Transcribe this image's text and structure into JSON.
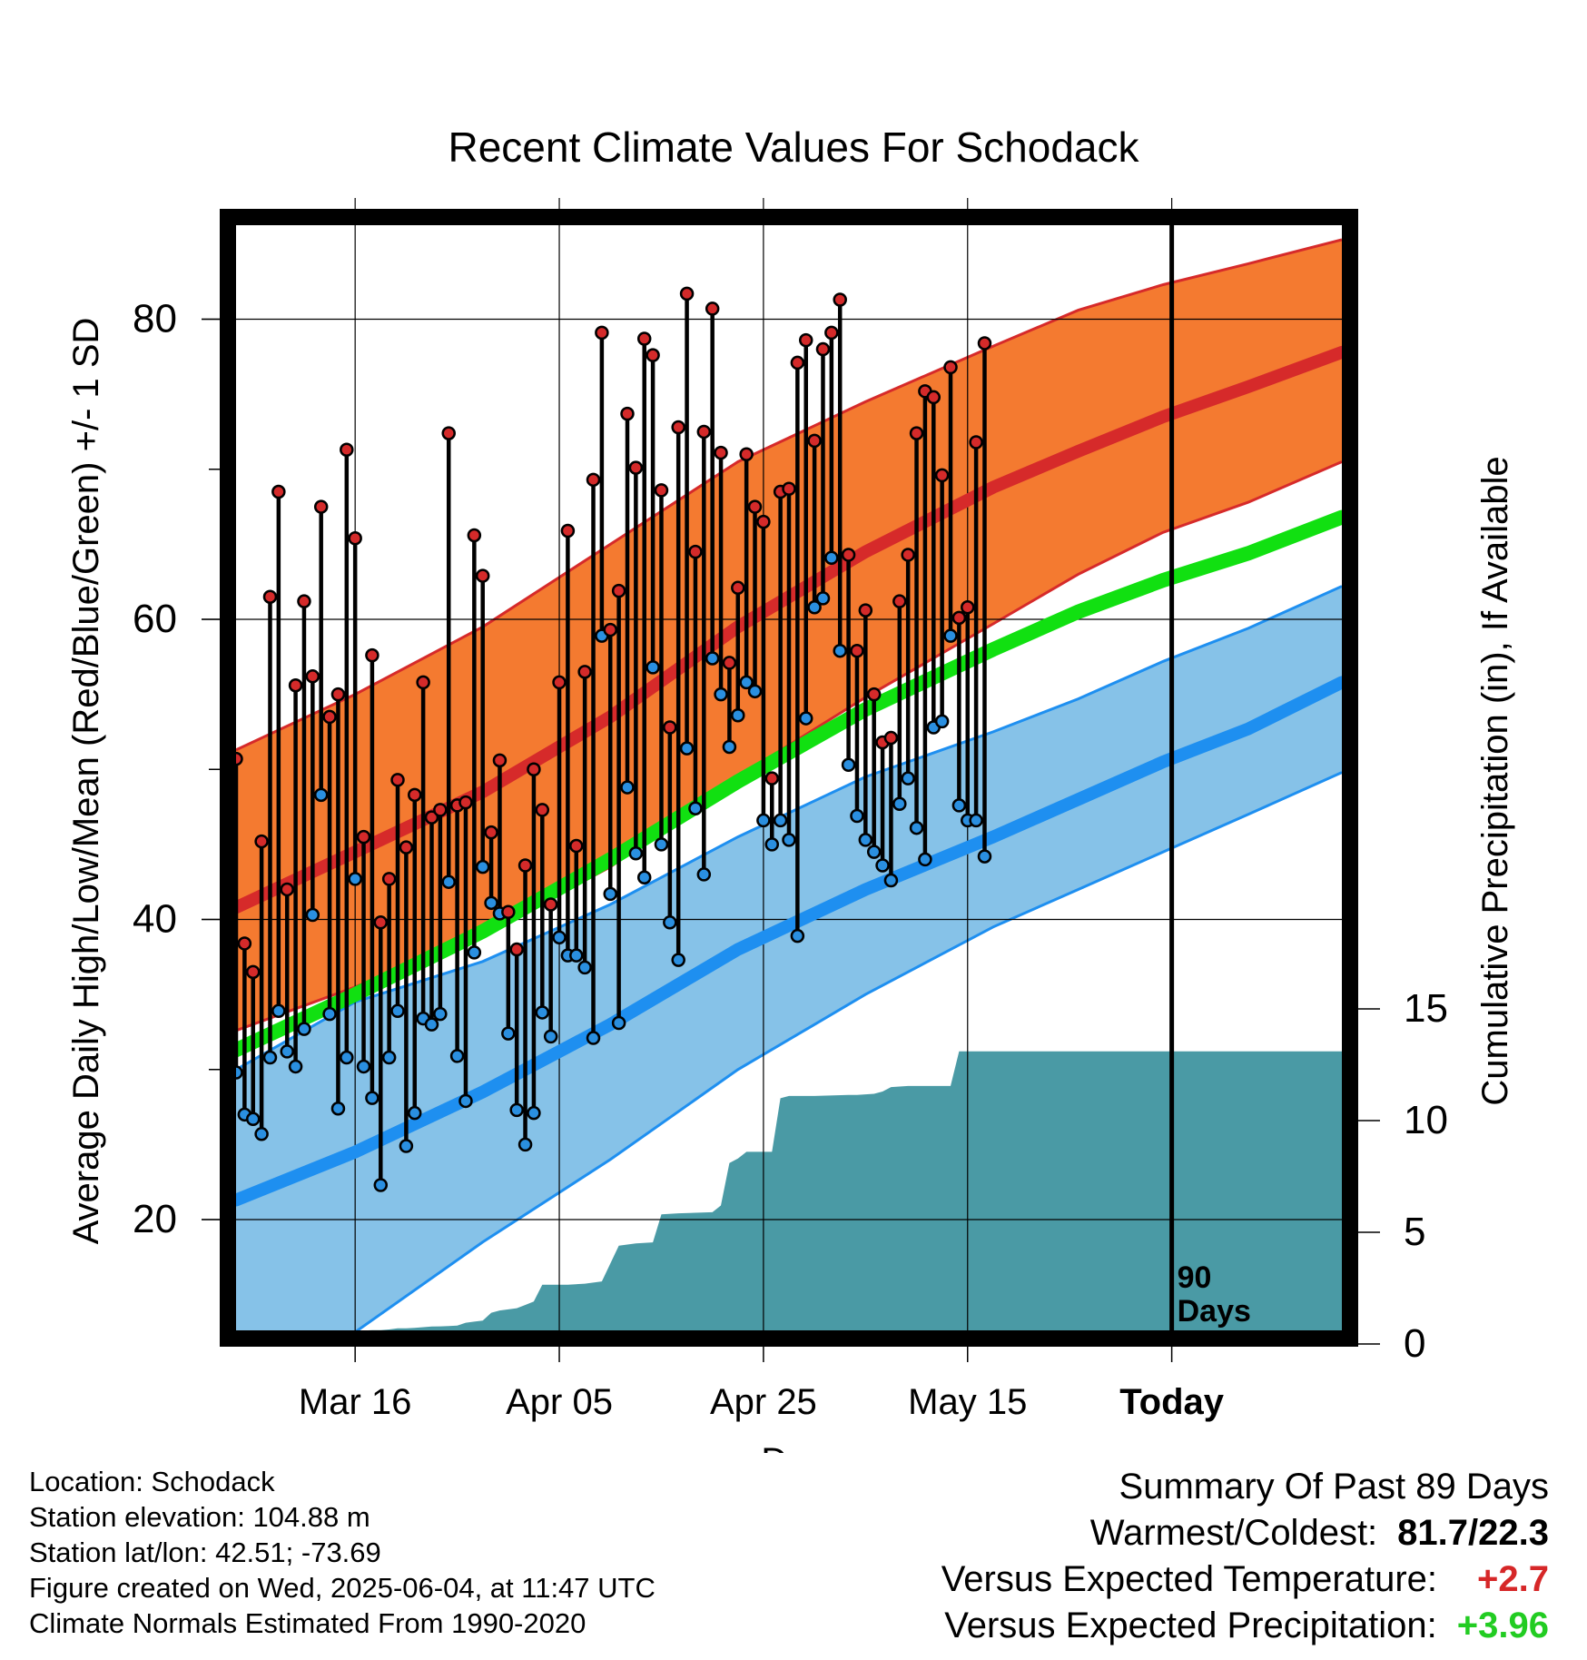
{
  "chart_data": {
    "type": "line",
    "title": "Recent Climate Values For Schodack",
    "xlabel": "Day",
    "ylabel": "Average Daily High/Low/Mean (Red/Blue/Green) +/- 1 SD",
    "y2label": "Cumulative Precipitation (in), If Available",
    "x_tick_labels": [
      "Mar 16",
      "Apr 05",
      "Apr 25",
      "May 15",
      "Today"
    ],
    "y_ticks": [
      20,
      40,
      60,
      80
    ],
    "y2_ticks": [
      0,
      5,
      10,
      15
    ],
    "today_marker_label": [
      "90",
      "Days"
    ],
    "colors": {
      "high_band": "#f47a30",
      "high_line": "#d62a2a",
      "mean_line": "#11e011",
      "low_band": "#86c2e8",
      "low_line": "#1e8ff0",
      "precip": "#4a9aa5"
    },
    "normals": {
      "high_mean": [
        [
          1,
          40.8
        ],
        [
          15,
          44.5
        ],
        [
          30,
          48.5
        ],
        [
          45,
          53.5
        ],
        [
          60,
          59.5
        ],
        [
          75,
          64.5
        ],
        [
          90,
          68.8
        ],
        [
          100,
          71.2
        ],
        [
          110,
          73.5
        ],
        [
          120,
          75.5
        ],
        [
          131,
          77.8
        ]
      ],
      "high_sd_upper": [
        [
          1,
          51.3
        ],
        [
          15,
          55
        ],
        [
          30,
          59.5
        ],
        [
          45,
          65
        ],
        [
          60,
          70.5
        ],
        [
          75,
          74.5
        ],
        [
          90,
          78.2
        ],
        [
          100,
          80.6
        ],
        [
          110,
          82.3
        ],
        [
          120,
          83.7
        ],
        [
          131,
          85.3
        ]
      ],
      "high_sd_lower": [
        [
          1,
          32.6
        ],
        [
          15,
          35.5
        ],
        [
          30,
          39
        ],
        [
          45,
          43.5
        ],
        [
          60,
          49.5
        ],
        [
          75,
          54.8
        ],
        [
          90,
          59.7
        ],
        [
          100,
          63
        ],
        [
          110,
          65.8
        ],
        [
          120,
          67.8
        ],
        [
          131,
          70.5
        ]
      ],
      "mean": [
        [
          1,
          31.3
        ],
        [
          15,
          35
        ],
        [
          30,
          39.2
        ],
        [
          45,
          44
        ],
        [
          60,
          49.2
        ],
        [
          75,
          54
        ],
        [
          90,
          58
        ],
        [
          100,
          60.5
        ],
        [
          110,
          62.6
        ],
        [
          120,
          64.4
        ],
        [
          131,
          66.8
        ]
      ],
      "low_mean": [
        [
          1,
          21.3
        ],
        [
          15,
          24.5
        ],
        [
          30,
          28.5
        ],
        [
          45,
          33
        ],
        [
          60,
          38
        ],
        [
          75,
          42
        ],
        [
          90,
          45.5
        ],
        [
          100,
          48
        ],
        [
          110,
          50.5
        ],
        [
          120,
          52.7
        ],
        [
          131,
          55.8
        ]
      ],
      "low_sd_upper": [
        [
          1,
          30
        ],
        [
          15,
          34.5
        ],
        [
          30,
          37.2
        ],
        [
          45,
          41
        ],
        [
          60,
          45.5
        ],
        [
          75,
          49.5
        ],
        [
          90,
          52.5
        ],
        [
          100,
          54.7
        ],
        [
          110,
          57.2
        ],
        [
          120,
          59.4
        ],
        [
          131,
          62.2
        ]
      ],
      "low_sd_lower": [
        [
          1,
          9
        ],
        [
          15,
          12.5
        ],
        [
          30,
          18.5
        ],
        [
          45,
          24
        ],
        [
          60,
          30
        ],
        [
          75,
          35
        ],
        [
          90,
          39.5
        ],
        [
          100,
          42
        ],
        [
          110,
          44.5
        ],
        [
          120,
          47
        ],
        [
          131,
          49.8
        ]
      ]
    },
    "daily_high": [
      50.7,
      38.4,
      36.5,
      45.2,
      61.5,
      68.5,
      42,
      55.6,
      61.2,
      56.2,
      67.5,
      53.5,
      55,
      71.3,
      65.4,
      45.5,
      57.6,
      39.8,
      42.7,
      49.3,
      44.8,
      48.3,
      55.8,
      46.8,
      47.3,
      72.4,
      47.6,
      47.8,
      65.6,
      62.9,
      45.8,
      50.6,
      40.5,
      38,
      43.6,
      50,
      47.3,
      41,
      55.8,
      65.9,
      44.9,
      56.5,
      69.3,
      79.1,
      59.3,
      61.9,
      73.7,
      70.1,
      78.7,
      77.6,
      68.6,
      52.8,
      72.8,
      81.7,
      64.5,
      72.5,
      80.7,
      71.1,
      57.1,
      62.1,
      71,
      67.5,
      66.5,
      49.4,
      68.5,
      68.7,
      77.1,
      78.6,
      71.9,
      78,
      79.1,
      81.3,
      64.3,
      57.9,
      60.6,
      55,
      51.8,
      52.1,
      61.2,
      64.3,
      72.4,
      75.2,
      74.8,
      69.6,
      76.8,
      60.1,
      60.8,
      71.8,
      78.4
    ],
    "daily_low": [
      29.8,
      27,
      26.7,
      25.7,
      30.8,
      33.9,
      31.2,
      30.2,
      32.7,
      40.3,
      48.3,
      33.7,
      27.4,
      30.8,
      42.7,
      30.2,
      28.1,
      22.3,
      30.8,
      33.9,
      24.9,
      27.1,
      33.4,
      33,
      33.7,
      42.5,
      30.9,
      27.9,
      37.8,
      43.5,
      41.1,
      40.4,
      32.4,
      27.3,
      25,
      27.1,
      33.8,
      32.2,
      38.8,
      37.6,
      37.6,
      36.8,
      32.1,
      58.9,
      41.7,
      33.1,
      48.8,
      44.4,
      42.8,
      56.8,
      45,
      39.8,
      37.3,
      51.4,
      47.4,
      43,
      57.4,
      55,
      51.5,
      53.6,
      55.8,
      55.2,
      46.6,
      45,
      46.6,
      45.3,
      38.9,
      53.4,
      60.8,
      61.4,
      64.1,
      57.9,
      50.3,
      46.9,
      45.3,
      44.5,
      43.6,
      42.6,
      47.7,
      49.4,
      46.1,
      44,
      52.8,
      53.2,
      58.9,
      47.6,
      46.6,
      46.6,
      44.2
    ],
    "cumulative_precip": [
      [
        11,
        0
      ],
      [
        11,
        0.05
      ],
      [
        12,
        0.1
      ],
      [
        13,
        0.3
      ],
      [
        14,
        0.35
      ],
      [
        15,
        0.55
      ],
      [
        16,
        0.6
      ],
      [
        17,
        0.62
      ],
      [
        18,
        0.62
      ],
      [
        19,
        0.65
      ],
      [
        20,
        0.7
      ],
      [
        21,
        0.7
      ],
      [
        22,
        0.72
      ],
      [
        23,
        0.75
      ],
      [
        24,
        0.78
      ],
      [
        25,
        0.79
      ],
      [
        26,
        0.8
      ],
      [
        27,
        0.82
      ],
      [
        28,
        0.95
      ],
      [
        29,
        1.0
      ],
      [
        30,
        1.05
      ],
      [
        31,
        1.4
      ],
      [
        32,
        1.5
      ],
      [
        33,
        1.55
      ],
      [
        34,
        1.6
      ],
      [
        35,
        1.75
      ],
      [
        36,
        1.9
      ],
      [
        37,
        2.65
      ],
      [
        38,
        2.65
      ],
      [
        40,
        2.65
      ],
      [
        42,
        2.7
      ],
      [
        44,
        2.8
      ],
      [
        46,
        4.4
      ],
      [
        48,
        4.5
      ],
      [
        50,
        4.55
      ],
      [
        51,
        5.8
      ],
      [
        53,
        5.85
      ],
      [
        57,
        5.9
      ],
      [
        58,
        6.2
      ],
      [
        59,
        8.1
      ],
      [
        60,
        8.3
      ],
      [
        61,
        8.6
      ],
      [
        64,
        8.6
      ],
      [
        65,
        11.0
      ],
      [
        66,
        11.1
      ],
      [
        69,
        11.1
      ],
      [
        73,
        11.15
      ],
      [
        74,
        11.15
      ],
      [
        76,
        11.2
      ],
      [
        77,
        11.3
      ],
      [
        78,
        11.5
      ],
      [
        80,
        11.55
      ],
      [
        85,
        11.55
      ],
      [
        86,
        13.1
      ],
      [
        90,
        13.1
      ],
      [
        131,
        13.1
      ]
    ]
  },
  "summary": {
    "heading": "Summary Of Past 89 Days",
    "warmest_coldest_label": "Warmest/Coldest:",
    "warmest_coldest_value": "81.7/22.3",
    "temp_label": "Versus Expected Temperature:",
    "temp_value": "+2.7",
    "precip_label": "Versus Expected Precipitation:",
    "precip_value": "+3.96"
  },
  "meta": {
    "location": "Location: Schodack",
    "elevation": "Station elevation: 104.88 m",
    "latlon": "Station lat/lon: 42.51; -73.69",
    "created": "Figure created on Wed, 2025-06-04, at 11:47 UTC",
    "normals": "Climate Normals Estimated From 1990-2020"
  }
}
